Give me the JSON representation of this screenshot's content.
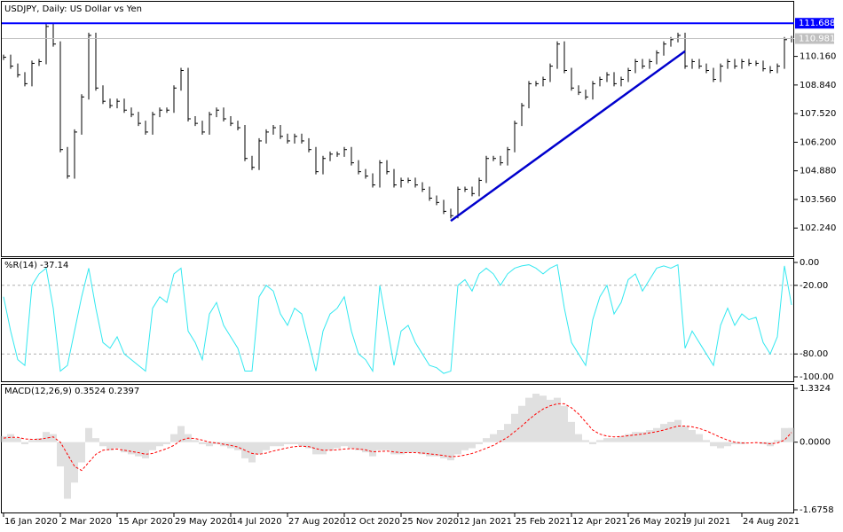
{
  "chart_data": [
    {
      "type": "price",
      "title": "USDJPY, Daily:  US Dollar vs Yen",
      "color": "#000000",
      "categories": [
        "16 Jan 2020",
        null,
        null,
        null,
        null,
        null,
        null,
        null,
        "2 Mar 2020",
        null,
        null,
        null,
        null,
        null,
        null,
        null,
        "15 Apr 2020",
        null,
        null,
        null,
        null,
        null,
        null,
        null,
        "29 May 2020",
        null,
        null,
        null,
        null,
        null,
        null,
        null,
        "14 Jul 2020",
        null,
        null,
        null,
        null,
        null,
        null,
        null,
        "27 Aug 2020",
        null,
        null,
        null,
        null,
        null,
        null,
        null,
        "12 Oct 2020",
        null,
        null,
        null,
        null,
        null,
        null,
        null,
        "25 Nov 2020",
        null,
        null,
        null,
        null,
        null,
        null,
        null,
        "12 Jan 2021",
        null,
        null,
        null,
        null,
        null,
        null,
        null,
        "25 Feb 2021",
        null,
        null,
        null,
        null,
        null,
        null,
        null,
        "12 Apr 2021",
        null,
        null,
        null,
        null,
        null,
        null,
        null,
        "26 May 2021",
        null,
        null,
        null,
        null,
        null,
        null,
        null,
        "9 Jul 2021",
        null,
        null,
        null,
        null,
        null,
        null,
        null,
        "24 Aug 2021",
        null,
        null,
        null,
        null,
        null,
        null,
        null
      ],
      "values": [
        110.12,
        109.71,
        109.31,
        108.9,
        109.84,
        109.92,
        111.54,
        110.73,
        105.86,
        104.64,
        106.67,
        108.29,
        111.13,
        108.7,
        108.09,
        107.89,
        108.09,
        107.68,
        107.48,
        107.07,
        106.67,
        107.48,
        107.68,
        107.68,
        108.7,
        109.51,
        107.28,
        107.07,
        106.67,
        107.48,
        107.68,
        107.28,
        107.07,
        106.87,
        105.45,
        105.04,
        106.26,
        106.67,
        106.87,
        106.47,
        106.26,
        106.47,
        106.26,
        105.86,
        104.84,
        105.45,
        105.65,
        105.65,
        105.86,
        105.25,
        104.84,
        104.64,
        104.23,
        105.25,
        104.84,
        104.23,
        104.44,
        104.44,
        104.23,
        104.03,
        103.62,
        103.42,
        103.01,
        102.81,
        104.03,
        104.03,
        103.83,
        104.44,
        105.45,
        105.45,
        105.25,
        105.86,
        107.07,
        107.89,
        108.9,
        108.9,
        109.1,
        109.71,
        110.73,
        109.51,
        108.7,
        108.5,
        108.29,
        108.9,
        109.1,
        109.31,
        108.9,
        109.1,
        109.51,
        109.92,
        109.71,
        109.92,
        110.32,
        110.73,
        110.93,
        111.13,
        109.71,
        109.92,
        109.71,
        109.51,
        109.1,
        109.71,
        109.92,
        109.71,
        109.92,
        109.84,
        109.84,
        109.59,
        109.51,
        109.71,
        110.93,
        110.981
      ],
      "ylim": [
        100.98,
        112.68
      ],
      "yticks": [
        {
          "value": 110.16,
          "label": "110.160"
        },
        {
          "value": 108.84,
          "label": "108.840"
        },
        {
          "value": 107.52,
          "label": "107.520"
        },
        {
          "value": 106.2,
          "label": "106.200"
        },
        {
          "value": 104.88,
          "label": "104.880"
        },
        {
          "value": 103.56,
          "label": "103.560"
        },
        {
          "value": 102.24,
          "label": "102.240"
        }
      ],
      "hlines": [
        111.688
      ],
      "hline_color": "#0000ff",
      "last_color": "#c0c0c0",
      "trendline": {
        "x": [
          63,
          96
        ],
        "y": [
          102.57,
          110.4
        ],
        "color": "#0000cd"
      }
    },
    {
      "type": "line",
      "title": "%R(14) -37.14",
      "color": "#33e8f0",
      "grid": true,
      "values": [
        -30,
        -60,
        -85,
        -90,
        -20,
        -10,
        -5,
        -40,
        -95,
        -90,
        -60,
        -30,
        -5,
        -40,
        -70,
        -75,
        -65,
        -80,
        -85,
        -90,
        -95,
        -40,
        -30,
        -35,
        -10,
        -5,
        -60,
        -70,
        -85,
        -45,
        -35,
        -55,
        -65,
        -75,
        -95,
        -95,
        -30,
        -20,
        -25,
        -45,
        -55,
        -40,
        -45,
        -70,
        -95,
        -60,
        -45,
        -40,
        -30,
        -60,
        -80,
        -85,
        -95,
        -20,
        -55,
        -90,
        -60,
        -55,
        -70,
        -80,
        -90,
        -92,
        -97,
        -95,
        -20,
        -15,
        -25,
        -10,
        -5,
        -10,
        -20,
        -10,
        -5,
        -3,
        -2,
        -5,
        -10,
        -5,
        -2,
        -40,
        -70,
        -80,
        -90,
        -50,
        -30,
        -20,
        -45,
        -35,
        -15,
        -10,
        -25,
        -15,
        -5,
        -3,
        -5,
        -2,
        -75,
        -60,
        -70,
        -80,
        -90,
        -55,
        -40,
        -55,
        -45,
        -50,
        -48,
        -70,
        -80,
        -65,
        -3,
        -37.14
      ],
      "ylim": [
        -100,
        0
      ],
      "yticks": [
        {
          "value": 0,
          "label": "0.00"
        },
        {
          "value": -20,
          "label": "-20.00"
        },
        {
          "value": -80,
          "label": "-80.00"
        },
        {
          "value": -100,
          "label": "-100.00"
        }
      ]
    },
    {
      "type": "macd",
      "title": "MACD(12,26,9) 0.3524 0.2397",
      "series": [
        {
          "color": "#c0c0c0",
          "values": [
            0.15,
            0.2,
            0.1,
            -0.05,
            0.05,
            0.1,
            0.25,
            0.2,
            -0.6,
            -1.4,
            -1.0,
            -0.5,
            0.35,
            0.1,
            -0.1,
            -0.2,
            -0.15,
            -0.25,
            -0.3,
            -0.35,
            -0.4,
            -0.2,
            -0.1,
            -0.05,
            0.2,
            0.4,
            0.2,
            0.05,
            -0.05,
            -0.1,
            -0.05,
            -0.1,
            -0.15,
            -0.2,
            -0.4,
            -0.5,
            -0.3,
            -0.2,
            -0.1,
            -0.1,
            -0.05,
            -0.05,
            -0.1,
            -0.15,
            -0.3,
            -0.3,
            -0.2,
            -0.15,
            -0.1,
            -0.15,
            -0.2,
            -0.25,
            -0.35,
            -0.2,
            -0.2,
            -0.3,
            -0.3,
            -0.25,
            -0.25,
            -0.3,
            -0.35,
            -0.35,
            -0.4,
            -0.45,
            -0.3,
            -0.2,
            -0.15,
            -0.05,
            0.1,
            0.2,
            0.3,
            0.45,
            0.7,
            0.9,
            1.1,
            1.2,
            1.15,
            1.05,
            1.1,
            0.9,
            0.5,
            0.2,
            0.05,
            -0.05,
            0.05,
            0.1,
            0.1,
            0.15,
            0.2,
            0.25,
            0.25,
            0.3,
            0.35,
            0.45,
            0.5,
            0.55,
            0.4,
            0.3,
            0.2,
            0.05,
            -0.1,
            -0.15,
            -0.1,
            -0.05,
            -0.05,
            0.0,
            0.0,
            -0.05,
            -0.1,
            0.05,
            0.35,
            0.3524
          ]
        },
        {
          "color": "#ff0000",
          "values": [
            0.1,
            0.12,
            0.12,
            0.08,
            0.07,
            0.07,
            0.1,
            0.13,
            0.0,
            -0.3,
            -0.6,
            -0.7,
            -0.5,
            -0.3,
            -0.2,
            -0.18,
            -0.17,
            -0.2,
            -0.23,
            -0.26,
            -0.3,
            -0.28,
            -0.22,
            -0.16,
            -0.08,
            0.05,
            0.1,
            0.09,
            0.05,
            0.0,
            -0.02,
            -0.05,
            -0.08,
            -0.12,
            -0.2,
            -0.28,
            -0.3,
            -0.27,
            -0.22,
            -0.18,
            -0.14,
            -0.11,
            -0.1,
            -0.11,
            -0.16,
            -0.2,
            -0.2,
            -0.19,
            -0.17,
            -0.16,
            -0.17,
            -0.19,
            -0.24,
            -0.23,
            -0.22,
            -0.24,
            -0.26,
            -0.26,
            -0.26,
            -0.27,
            -0.29,
            -0.31,
            -0.33,
            -0.36,
            -0.35,
            -0.32,
            -0.28,
            -0.22,
            -0.15,
            -0.08,
            0.02,
            0.12,
            0.26,
            0.4,
            0.56,
            0.7,
            0.82,
            0.9,
            0.95,
            0.95,
            0.85,
            0.7,
            0.5,
            0.3,
            0.2,
            0.15,
            0.13,
            0.14,
            0.16,
            0.18,
            0.2,
            0.23,
            0.26,
            0.3,
            0.35,
            0.4,
            0.4,
            0.38,
            0.34,
            0.28,
            0.2,
            0.12,
            0.05,
            0.0,
            -0.02,
            -0.02,
            -0.01,
            -0.02,
            -0.04,
            -0.02,
            0.05,
            0.2397
          ]
        }
      ],
      "ylim": [
        -1.6758,
        1.3324
      ],
      "yticks": [
        1.3324,
        {
          "value": 0,
          "label": "0.0000"
        },
        -1.6758
      ]
    }
  ]
}
